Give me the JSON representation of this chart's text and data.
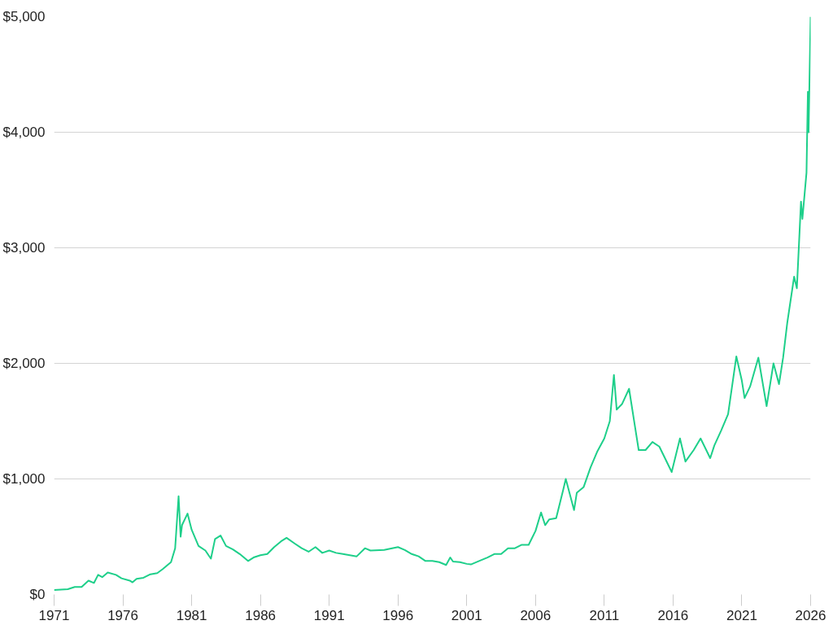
{
  "chart_data": {
    "type": "line",
    "x": [
      1971.0,
      1972.0,
      1972.5,
      1973.0,
      1973.5,
      1973.9,
      1974.2,
      1974.5,
      1974.9,
      1975.5,
      1975.9,
      1976.5,
      1976.7,
      1977.0,
      1977.5,
      1978.0,
      1978.5,
      1978.9,
      1979.5,
      1979.8,
      1980.05,
      1980.2,
      1980.3,
      1980.7,
      1981.0,
      1981.5,
      1982.0,
      1982.4,
      1982.7,
      1983.1,
      1983.5,
      1984.0,
      1984.5,
      1985.1,
      1985.5,
      1986.0,
      1986.5,
      1987.0,
      1987.5,
      1987.9,
      1988.5,
      1989.0,
      1989.5,
      1990.0,
      1990.5,
      1991.0,
      1991.5,
      1992.0,
      1992.5,
      1993.0,
      1993.6,
      1994.0,
      1995.0,
      1996.0,
      1996.5,
      1997.0,
      1997.5,
      1998.0,
      1998.5,
      1999.0,
      1999.5,
      1999.8,
      2000.0,
      2000.5,
      2001.0,
      2001.3,
      2002.0,
      2002.5,
      2003.0,
      2003.5,
      2004.0,
      2004.5,
      2005.0,
      2005.5,
      2006.0,
      2006.4,
      2006.7,
      2007.0,
      2007.5,
      2008.0,
      2008.2,
      2008.8,
      2009.0,
      2009.5,
      2010.0,
      2010.5,
      2011.0,
      2011.4,
      2011.7,
      2011.9,
      2012.3,
      2012.8,
      2013.3,
      2013.5,
      2014.0,
      2014.5,
      2015.0,
      2015.9,
      2016.5,
      2016.9,
      2017.5,
      2018.0,
      2018.7,
      2019.0,
      2019.5,
      2020.0,
      2020.6,
      2021.0,
      2021.2,
      2021.6,
      2022.2,
      2022.8,
      2023.3,
      2023.7,
      2024.0,
      2024.3,
      2024.8,
      2025.0,
      2025.3,
      2025.4,
      2025.7,
      2025.8,
      2025.85,
      2026.0
    ],
    "series": [
      {
        "color": "#1ecf8a",
        "values": [
          38,
          46,
          65,
          65,
          120,
          100,
          170,
          150,
          190,
          170,
          140,
          120,
          105,
          135,
          145,
          175,
          185,
          220,
          280,
          400,
          850,
          500,
          600,
          700,
          560,
          420,
          380,
          310,
          480,
          510,
          420,
          390,
          350,
          290,
          320,
          340,
          350,
          410,
          460,
          490,
          440,
          400,
          370,
          410,
          360,
          380,
          360,
          350,
          340,
          330,
          400,
          380,
          385,
          410,
          385,
          350,
          330,
          290,
          290,
          280,
          255,
          320,
          285,
          280,
          265,
          260,
          295,
          320,
          350,
          350,
          400,
          400,
          430,
          430,
          550,
          710,
          600,
          650,
          660,
          900,
          1000,
          730,
          880,
          930,
          1100,
          1240,
          1350,
          1500,
          1900,
          1600,
          1650,
          1780,
          1400,
          1250,
          1250,
          1320,
          1280,
          1060,
          1350,
          1150,
          1250,
          1350,
          1180,
          1290,
          1420,
          1560,
          2060,
          1850,
          1700,
          1800,
          2050,
          1630,
          2000,
          1820,
          2050,
          2350,
          2750,
          2650,
          3400,
          3250,
          3650,
          4350,
          4000,
          5000
        ]
      }
    ],
    "xlim": [
      1971,
      2026
    ],
    "xticks": [
      1971,
      1976,
      1981,
      1986,
      1991,
      1996,
      2001,
      2006,
      2011,
      2016,
      2021,
      2026
    ],
    "ylim": [
      0,
      5000
    ],
    "yticks": [
      {
        "value": 0,
        "label": "$0"
      },
      {
        "value": 1000,
        "label": "$1,000"
      },
      {
        "value": 2000,
        "label": "$2,000"
      },
      {
        "value": 3000,
        "label": "$3,000"
      },
      {
        "value": 4000,
        "label": "$4,000"
      },
      {
        "value": 5000,
        "label": "$5,000"
      }
    ],
    "grid": "y",
    "marker": "none",
    "line_style": "solid"
  }
}
